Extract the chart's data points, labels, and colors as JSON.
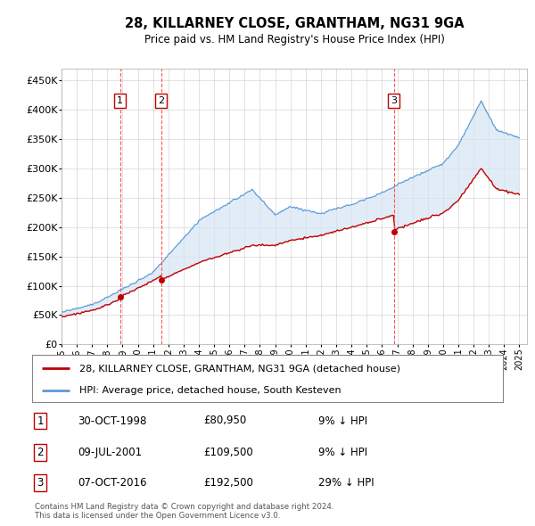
{
  "title": "28, KILLARNEY CLOSE, GRANTHAM, NG31 9GA",
  "subtitle": "Price paid vs. HM Land Registry's House Price Index (HPI)",
  "yticks": [
    0,
    50000,
    100000,
    150000,
    200000,
    250000,
    300000,
    350000,
    400000,
    450000
  ],
  "ytick_labels": [
    "£0",
    "£50K",
    "£100K",
    "£150K",
    "£200K",
    "£250K",
    "£300K",
    "£350K",
    "£400K",
    "£450K"
  ],
  "xlim_start": 1995.0,
  "xlim_end": 2025.5,
  "ylim_min": 0,
  "ylim_max": 470000,
  "sale_dates": [
    1998.83,
    2001.52,
    2016.77
  ],
  "sale_prices": [
    80950,
    109500,
    192500
  ],
  "sale_labels": [
    "1",
    "2",
    "3"
  ],
  "hpi_line_color": "#5b9bd5",
  "price_line_color": "#c00000",
  "sale_marker_color": "#c00000",
  "vline_color": "#ff4444",
  "shade_color": "#d6e4f5",
  "legend_entries": [
    "28, KILLARNEY CLOSE, GRANTHAM, NG31 9GA (detached house)",
    "HPI: Average price, detached house, South Kesteven"
  ],
  "table_rows": [
    [
      "1",
      "30-OCT-1998",
      "£80,950",
      "9% ↓ HPI"
    ],
    [
      "2",
      "09-JUL-2001",
      "£109,500",
      "9% ↓ HPI"
    ],
    [
      "3",
      "07-OCT-2016",
      "£192,500",
      "29% ↓ HPI"
    ]
  ],
  "footer": "Contains HM Land Registry data © Crown copyright and database right 2024.\nThis data is licensed under the Open Government Licence v3.0.",
  "background_color": "#ffffff",
  "grid_color": "#cccccc"
}
